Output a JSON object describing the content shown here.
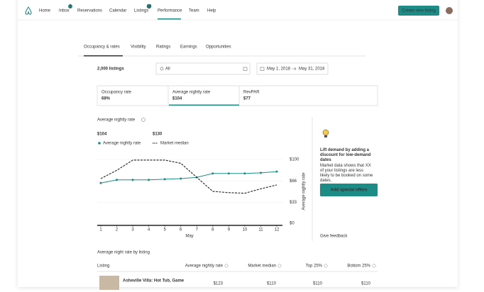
{
  "nav": {
    "links": [
      "Home",
      "Inbox",
      "Reservations",
      "Calendar",
      "Listings",
      "Performance",
      "Team",
      "Help"
    ],
    "inbox_badge": "2",
    "listings_badge": "10",
    "button": "Create new listing"
  },
  "tabs": [
    "Occupancy & rates",
    "Visibility",
    "Ratings",
    "Earnings",
    "Opportunities"
  ],
  "listings_count": "2,000 listings",
  "search_value": "All",
  "date_start": "May 1, 2018",
  "date_end": "May 31, 2018",
  "stats": [
    {
      "label": "Occupancy rate",
      "value": "68%"
    },
    {
      "label": "Average nightly rate",
      "value": "$104"
    },
    {
      "label": "RevPAR",
      "value": "$77"
    }
  ],
  "chart_data": {
    "type": "line",
    "title": "Average nightly rate",
    "summary": [
      "$104",
      "$130"
    ],
    "x": [
      1,
      2,
      3,
      4,
      5,
      6,
      7,
      8,
      9,
      10,
      11,
      12
    ],
    "xlim": [
      1,
      12
    ],
    "xticks": [
      1,
      2,
      3,
      4,
      5,
      6,
      7,
      8,
      9,
      10,
      11,
      12
    ],
    "xlabel": "May",
    "ylabel": "Average nightly rate",
    "ylim": [
      0,
      100
    ],
    "yticks": [
      {
        "value": 0,
        "label": "$0"
      },
      {
        "value": 33,
        "label": "$33"
      },
      {
        "value": 66,
        "label": "$66"
      },
      {
        "value": 100,
        "label": "$100"
      }
    ],
    "series": [
      {
        "name": "Average nightly rate",
        "color": "#1e8c86",
        "values": [
          63,
          68,
          68,
          68,
          69,
          70,
          72,
          78,
          78,
          78,
          79,
          81
        ]
      },
      {
        "name": "Market median",
        "color": "#333333",
        "values": [
          70,
          83,
          99,
          99,
          99,
          94,
          72,
          50,
          48,
          47,
          54,
          60
        ]
      }
    ]
  },
  "insight": {
    "title": "Lift demand by adding a discount for low-demand dates",
    "body": "Market data shows that XX of your listings are less likely to be booked on some dates.",
    "button": "Add special offers",
    "feedback": "Give feedback"
  },
  "table": {
    "title": "Average night rate by listing",
    "columns": [
      "Listing",
      "Average nightly rate",
      "Market median",
      "Top 25%",
      "Bottom 25%"
    ],
    "rows": [
      [
        "Asheville Villa: Hot Tub, Game",
        "$123",
        "$110",
        "$110",
        "$110"
      ]
    ]
  }
}
